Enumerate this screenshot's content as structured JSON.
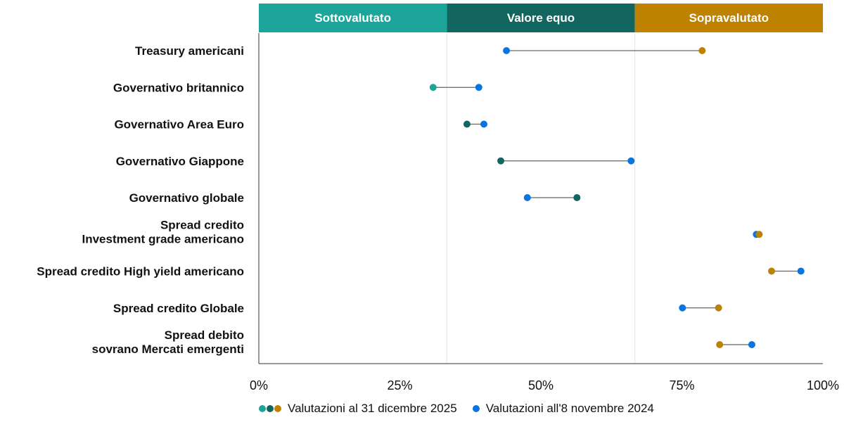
{
  "chart_data": {
    "type": "dumbbell",
    "xlim": [
      0,
      100
    ],
    "x_ticks": [
      "0%",
      "25%",
      "50%",
      "75%",
      "100%"
    ],
    "x_tick_values": [
      0,
      25,
      50,
      75,
      100
    ],
    "grid": false,
    "legend_placement": "bottom",
    "bands": [
      {
        "label": "Sottovalutato",
        "from": 0,
        "to": 33.33,
        "color": "#1ea59a"
      },
      {
        "label": "Valore equo",
        "from": 33.33,
        "to": 66.67,
        "color": "#136660"
      },
      {
        "label": "Sopravalutato",
        "from": 66.67,
        "to": 100,
        "color": "#bf8200"
      }
    ],
    "categories": [
      [
        "Treasury americani"
      ],
      [
        "Governativo britannico"
      ],
      [
        "Governativo Area Euro"
      ],
      [
        "Governativo Giappone"
      ],
      [
        "Governativo globale"
      ],
      [
        "Spread credito",
        "Investment grade americano"
      ],
      [
        "Spread credito High yield americano"
      ],
      [
        "Spread credito Globale"
      ],
      [
        "Spread debito",
        "sovrano Mercati emergenti"
      ]
    ],
    "series": [
      {
        "name": "Valutazioni al 31 dicembre 2025",
        "values": [
          78.6,
          30.9,
          36.9,
          42.9,
          56.4,
          88.7,
          90.9,
          81.5,
          81.7
        ]
      },
      {
        "name": "Valutazioni all'8 novembre 2024",
        "color": "#0a74e0",
        "values": [
          43.9,
          39.0,
          39.9,
          66.0,
          47.6,
          88.2,
          96.1,
          75.1,
          87.4
        ]
      }
    ]
  }
}
